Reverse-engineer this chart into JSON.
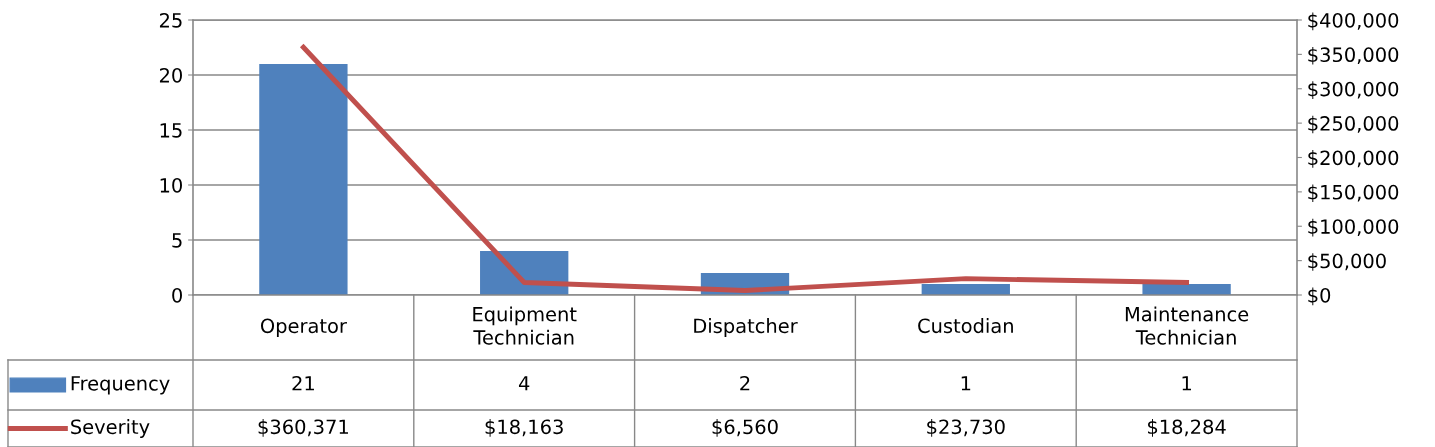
{
  "chart_data": {
    "type": "bar",
    "categories": [
      "Operator",
      "Equipment Technician",
      "Dispatcher",
      "Custodian",
      "Maintenance Technician"
    ],
    "series": [
      {
        "name": "Frequency",
        "color": "#4f81bd",
        "values": [
          21,
          4,
          2,
          1,
          1
        ],
        "value_labels": [
          "21",
          "4",
          "2",
          "1",
          "1"
        ]
      },
      {
        "name": "Severity",
        "type": "line",
        "axis": "y2",
        "color": "#c0504d",
        "values": [
          360371,
          18163,
          6560,
          23730,
          18284
        ],
        "value_labels": [
          "$360,371",
          "$18,163",
          "$6,560",
          "$23,730",
          "$18,284"
        ]
      }
    ],
    "ylim": [
      0,
      25
    ],
    "yticks": [
      0,
      5,
      10,
      15,
      20,
      25
    ],
    "y2lim": [
      0,
      400000
    ],
    "y2ticks": [
      {
        "value": 0,
        "label": "$0"
      },
      {
        "value": 50000,
        "label": "$50,000"
      },
      {
        "value": 100000,
        "label": "$100,000"
      },
      {
        "value": 150000,
        "label": "$150,000"
      },
      {
        "value": 200000,
        "label": "$200,000"
      },
      {
        "value": 250000,
        "label": "$250,000"
      },
      {
        "value": 300000,
        "label": "$300,000"
      },
      {
        "value": 350000,
        "label": "$350,000"
      },
      {
        "value": 400000,
        "label": "$400,000"
      }
    ],
    "grid": "y",
    "legend": "bottom left",
    "marker": "none",
    "line_style": "solid"
  }
}
